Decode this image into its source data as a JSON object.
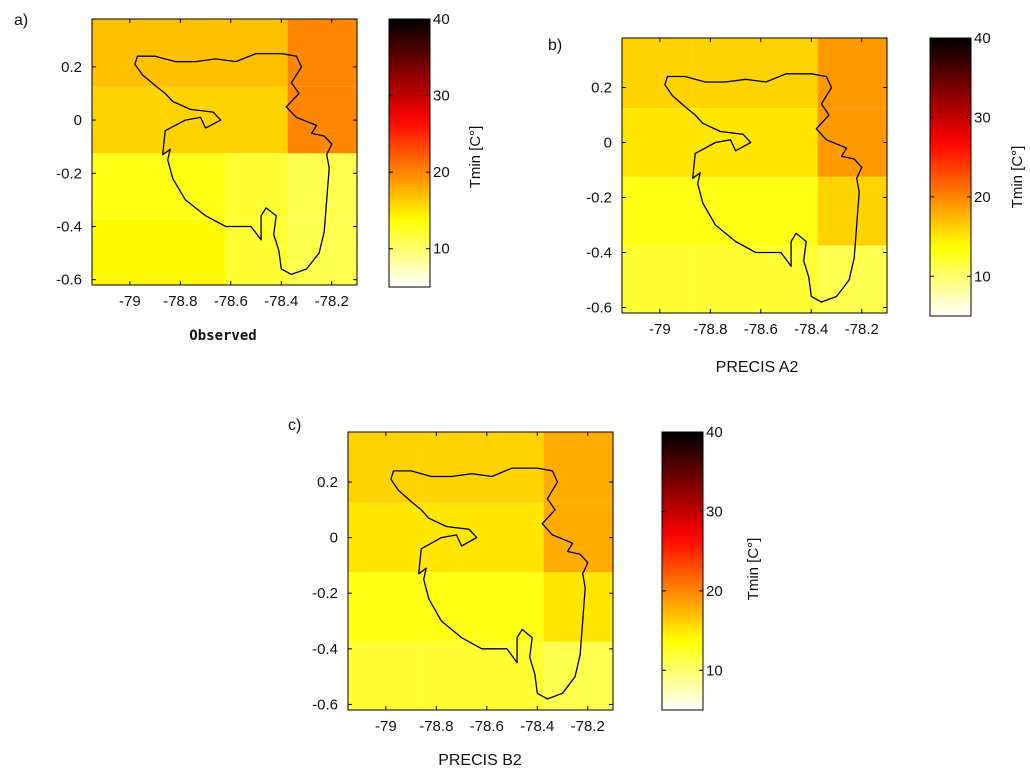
{
  "chart_data": [
    {
      "type": "heatmap",
      "panel_label": "a)",
      "xlabel": "Observed",
      "colorbar_label": "Tmin [C°]",
      "x_ticks": [
        -79,
        -78.8,
        -78.6,
        -78.4,
        -78.2
      ],
      "y_ticks": [
        0.2,
        0,
        -0.2,
        -0.4,
        -0.6
      ],
      "xlim": [
        -79.15,
        -78.1
      ],
      "ylim": [
        -0.62,
        0.38
      ],
      "colorbar": {
        "range": [
          5,
          40
        ],
        "ticks": [
          10,
          20,
          30,
          40
        ]
      },
      "x_edges": [
        -79.15,
        -78.875,
        -78.625,
        -78.375,
        -78.1
      ],
      "y_edges": [
        0.38,
        0.125,
        -0.125,
        -0.375,
        -0.62
      ],
      "values": [
        [
          17,
          17,
          17,
          20
        ],
        [
          16,
          16,
          16,
          20
        ],
        [
          13,
          13,
          12,
          11
        ],
        [
          14,
          14,
          12,
          11
        ]
      ]
    },
    {
      "type": "heatmap",
      "panel_label": "b)",
      "xlabel": "PRECIS A2",
      "colorbar_label": "Tmin [C°]",
      "x_ticks": [
        -79,
        -78.8,
        -78.6,
        -78.4,
        -78.2
      ],
      "y_ticks": [
        0.2,
        0,
        -0.2,
        -0.4,
        -0.6
      ],
      "xlim": [
        -79.15,
        -78.1
      ],
      "ylim": [
        -0.62,
        0.38
      ],
      "colorbar": {
        "range": [
          5,
          40
        ],
        "ticks": [
          10,
          20,
          30,
          40
        ]
      },
      "x_edges": [
        -79.15,
        -78.875,
        -78.625,
        -78.375,
        -78.1
      ],
      "y_edges": [
        0.38,
        0.125,
        -0.125,
        -0.375,
        -0.62
      ],
      "values": [
        [
          16,
          16,
          16,
          19
        ],
        [
          15,
          15,
          15,
          19
        ],
        [
          13,
          13,
          13,
          16
        ],
        [
          12,
          12,
          12,
          11
        ]
      ]
    },
    {
      "type": "heatmap",
      "panel_label": "c)",
      "xlabel": "PRECIS B2",
      "colorbar_label": "Tmin [C°]",
      "x_ticks": [
        -79,
        -78.8,
        -78.6,
        -78.4,
        -78.2
      ],
      "y_ticks": [
        0.2,
        0,
        -0.2,
        -0.4,
        -0.6
      ],
      "xlim": [
        -79.15,
        -78.1
      ],
      "ylim": [
        -0.62,
        0.38
      ],
      "colorbar": {
        "range": [
          5,
          40
        ],
        "ticks": [
          10,
          20,
          30,
          40
        ]
      },
      "x_edges": [
        -79.15,
        -78.875,
        -78.625,
        -78.375,
        -78.1
      ],
      "y_edges": [
        0.38,
        0.125,
        -0.125,
        -0.375,
        -0.62
      ],
      "values": [
        [
          16,
          16,
          16,
          18
        ],
        [
          15,
          15,
          15,
          18
        ],
        [
          13,
          13,
          13,
          15
        ],
        [
          12,
          12,
          12,
          11
        ]
      ]
    }
  ],
  "region_outline": [
    [
      -78.97,
      0.24
    ],
    [
      -78.9,
      0.24
    ],
    [
      -78.82,
      0.22
    ],
    [
      -78.74,
      0.22
    ],
    [
      -78.66,
      0.23
    ],
    [
      -78.58,
      0.22
    ],
    [
      -78.5,
      0.25
    ],
    [
      -78.4,
      0.25
    ],
    [
      -78.34,
      0.24
    ],
    [
      -78.32,
      0.2
    ],
    [
      -78.36,
      0.14
    ],
    [
      -78.33,
      0.1
    ],
    [
      -78.38,
      0.05
    ],
    [
      -78.34,
      0.01
    ],
    [
      -78.26,
      -0.02
    ],
    [
      -78.28,
      -0.05
    ],
    [
      -78.23,
      -0.06
    ],
    [
      -78.2,
      -0.09
    ],
    [
      -78.22,
      -0.13
    ],
    [
      -78.21,
      -0.18
    ],
    [
      -78.22,
      -0.3
    ],
    [
      -78.23,
      -0.42
    ],
    [
      -78.25,
      -0.5
    ],
    [
      -78.3,
      -0.56
    ],
    [
      -78.36,
      -0.58
    ],
    [
      -78.4,
      -0.56
    ],
    [
      -78.41,
      -0.49
    ],
    [
      -78.43,
      -0.43
    ],
    [
      -78.42,
      -0.36
    ],
    [
      -78.46,
      -0.33
    ],
    [
      -78.48,
      -0.36
    ],
    [
      -78.48,
      -0.45
    ],
    [
      -78.52,
      -0.4
    ],
    [
      -78.62,
      -0.4
    ],
    [
      -78.7,
      -0.36
    ],
    [
      -78.78,
      -0.3
    ],
    [
      -78.83,
      -0.22
    ],
    [
      -78.85,
      -0.15
    ],
    [
      -78.84,
      -0.11
    ],
    [
      -78.87,
      -0.13
    ],
    [
      -78.86,
      -0.04
    ],
    [
      -78.78,
      0.0
    ],
    [
      -78.72,
      0.01
    ],
    [
      -78.7,
      -0.03
    ],
    [
      -78.64,
      0.0
    ],
    [
      -78.67,
      0.03
    ],
    [
      -78.76,
      0.04
    ],
    [
      -78.83,
      0.07
    ],
    [
      -78.86,
      0.1
    ],
    [
      -78.9,
      0.13
    ],
    [
      -78.95,
      0.17
    ],
    [
      -78.98,
      0.21
    ]
  ]
}
